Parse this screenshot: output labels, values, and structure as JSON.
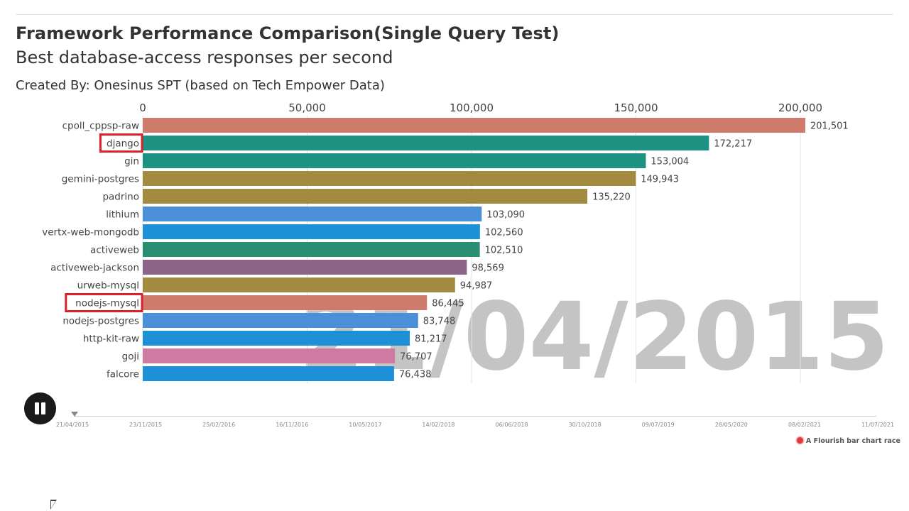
{
  "header": {
    "title": "Framework Performance Comparison(Single Query Test)",
    "subtitle": "Best database-access responses per second",
    "credit": "Created By: Onesinus SPT (based on Tech Empower Data)"
  },
  "chart_data": {
    "type": "bar",
    "orientation": "horizontal",
    "title": "Framework Performance Comparison(Single Query Test)",
    "subtitle": "Best database-access responses per second",
    "date_label": "21/04/2015",
    "xlim": [
      0,
      220000
    ],
    "x_ticks": [
      {
        "value": 0,
        "label": "0"
      },
      {
        "value": 50000,
        "label": "50,000"
      },
      {
        "value": 100000,
        "label": "100,000"
      },
      {
        "value": 150000,
        "label": "150,000"
      },
      {
        "value": 200000,
        "label": "200,000"
      }
    ],
    "grid": true,
    "categories": [
      "cpoll_cppsp-raw",
      "django",
      "gin",
      "gemini-postgres",
      "padrino",
      "lithium",
      "vertx-web-mongodb",
      "activeweb",
      "activeweb-jackson",
      "urweb-mysql",
      "nodejs-mysql",
      "nodejs-postgres",
      "http-kit-raw",
      "goji",
      "falcore"
    ],
    "values": [
      201501,
      172217,
      153004,
      149943,
      135220,
      103090,
      102560,
      102510,
      98569,
      94987,
      86445,
      83748,
      81217,
      76707,
      76438
    ],
    "value_labels": [
      "201,501",
      "172,217",
      "153,004",
      "149,943",
      "135,220",
      "103,090",
      "102,560",
      "102,510",
      "98,569",
      "94,987",
      "86,445",
      "83,748",
      "81,217",
      "76,707",
      "76,438"
    ],
    "colors": [
      "#cf7b6c",
      "#1e9282",
      "#1e9282",
      "#a38a41",
      "#a38a41",
      "#4a8fd8",
      "#1e90d6",
      "#2a8e73",
      "#8c6489",
      "#a38a41",
      "#cf7b6c",
      "#4a8fd8",
      "#1e90d6",
      "#cf7aa3",
      "#1e90d6"
    ],
    "highlighted": [
      "django",
      "nodejs-mysql"
    ],
    "highlight_color": "#dd1e2b"
  },
  "timeline": {
    "labels": [
      "21/04/2015",
      "23/11/2015",
      "25/02/2016",
      "16/11/2016",
      "10/05/2017",
      "14/02/2018",
      "06/06/2018",
      "30/10/2018",
      "09/07/2019",
      "28/05/2020",
      "08/02/2021",
      "11/07/2021"
    ]
  },
  "footer": {
    "flourish_credit": "A Flourish bar chart race"
  },
  "icons": {
    "pause": "pause-icon",
    "cursor": "cursor-icon"
  }
}
